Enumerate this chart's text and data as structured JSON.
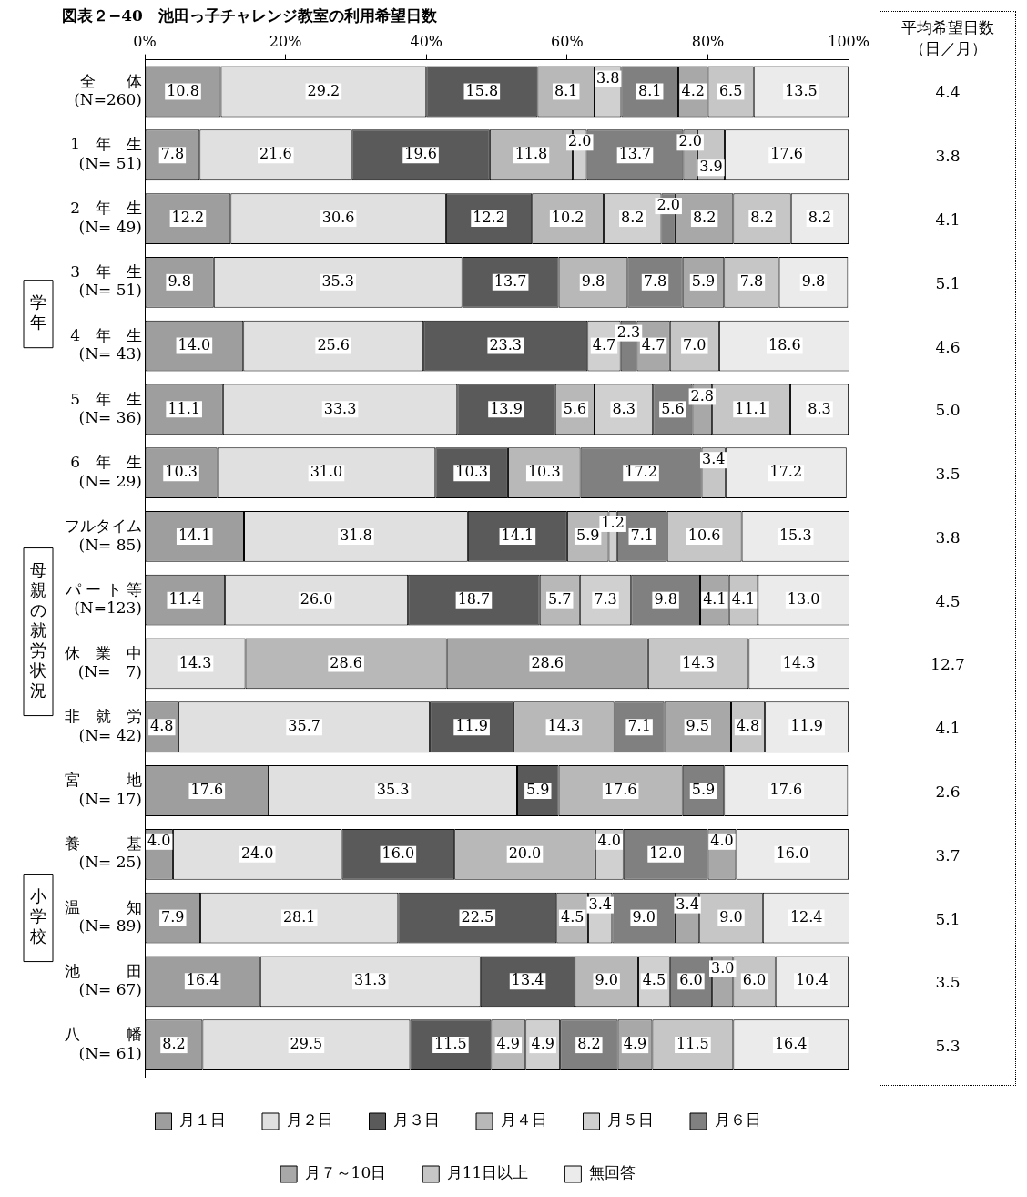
{
  "chart_data": [
    {
      "type": "bar",
      "orientation": "horizontal",
      "stacked": true,
      "title": "図表２−40　池田っ子チャレンジ教室の利用希望日数",
      "categories": [
        "全　　体\n(N=260)",
        "1　年　生\n(N= 51)",
        "2　年　生\n(N= 49)",
        "3　年　生\n(N= 51)",
        "4　年　生\n(N= 43)",
        "5　年　生\n(N= 36)",
        "6　年　生\n(N= 29)",
        "フルタイム\n(N= 85)",
        "パ ー ト 等\n(N=123)",
        "休　業　中\n(N=　7)",
        "非　就　労\n(N= 42)",
        "宮　　　地\n(N= 17)",
        "養　　　基\n(N= 25)",
        "温　　　知\n(N= 89)",
        "池　　　田\n(N= 67)",
        "八　　　幡\n(N= 61)"
      ],
      "series": [
        {
          "name": "月１日",
          "color": "#9e9e9e",
          "values": [
            10.8,
            7.8,
            12.2,
            9.8,
            14.0,
            11.1,
            10.3,
            14.1,
            11.4,
            null,
            4.8,
            17.6,
            4.0,
            7.9,
            16.4,
            8.2
          ],
          "value_labels": [
            "10.8",
            "7.8",
            "12.2",
            "9.8",
            "14.0",
            "11.1",
            "10.3",
            "14.1",
            "11.4",
            null,
            "4.8",
            "17.6",
            "4.0",
            "7.9",
            "16.4",
            "8.2"
          ]
        },
        {
          "name": "月２日",
          "color": "#e0e0e0",
          "values": [
            29.2,
            21.6,
            30.6,
            35.3,
            25.6,
            33.3,
            31.0,
            31.8,
            26.0,
            14.3,
            35.7,
            35.3,
            24.0,
            28.1,
            31.3,
            29.5
          ],
          "value_labels": [
            "29.2",
            "21.6",
            "30.6",
            "35.3",
            "25.6",
            "33.3",
            "31.0",
            "31.8",
            "26.0",
            "14.3",
            "35.7",
            "35.3",
            "24.0",
            "28.1",
            "31.3",
            "29.5"
          ]
        },
        {
          "name": "月３日",
          "color": "#5a5a5a",
          "values": [
            15.8,
            19.6,
            12.2,
            13.7,
            23.3,
            13.9,
            10.3,
            14.1,
            18.7,
            null,
            11.9,
            5.9,
            16.0,
            22.5,
            13.4,
            11.5
          ],
          "value_labels": [
            "15.8",
            "19.6",
            "12.2",
            "13.7",
            "23.3",
            "13.9",
            "10.3",
            "14.1",
            "18.7",
            null,
            "11.9",
            "5.9",
            "16.0",
            "22.5",
            "13.4",
            "11.5"
          ]
        },
        {
          "name": "月４日",
          "color": "#b8b8b8",
          "values": [
            8.1,
            11.8,
            10.2,
            9.8,
            null,
            5.6,
            10.3,
            5.9,
            5.7,
            28.6,
            14.3,
            17.6,
            20.0,
            4.5,
            9.0,
            4.9
          ],
          "value_labels": [
            "8.1",
            "11.8",
            "10.2",
            "9.8",
            null,
            "5.6",
            "10.3",
            "5.9",
            "5.7",
            "28.6",
            "14.3",
            "17.6",
            "20.0",
            "4.5",
            "9.0",
            "4.9"
          ]
        },
        {
          "name": "月５日",
          "color": "#d0d0d0",
          "values": [
            3.8,
            2.0,
            8.2,
            null,
            4.7,
            8.3,
            null,
            1.2,
            7.3,
            null,
            null,
            null,
            4.0,
            3.4,
            4.5,
            4.9
          ],
          "value_labels": [
            "3.8",
            "2.0",
            "8.2",
            null,
            "4.7",
            "8.3",
            null,
            "1.2",
            "7.3",
            null,
            null,
            null,
            "4.0",
            "3.4",
            "4.5",
            "4.9"
          ]
        },
        {
          "name": "月６日",
          "color": "#808080",
          "values": [
            8.1,
            13.7,
            2.0,
            7.8,
            2.3,
            5.6,
            17.2,
            7.1,
            9.8,
            null,
            7.1,
            5.9,
            12.0,
            9.0,
            6.0,
            8.2
          ],
          "value_labels": [
            "8.1",
            "13.7",
            "2.0",
            "7.8",
            "2.3",
            "5.6",
            "17.2",
            "7.1",
            "9.8",
            null,
            "7.1",
            "5.9",
            "12.0",
            "9.0",
            "6.0",
            "8.2"
          ]
        },
        {
          "name": "月７～10日",
          "color": "#a8a8a8",
          "values": [
            4.2,
            2.0,
            8.2,
            5.9,
            4.7,
            2.8,
            null,
            null,
            4.1,
            28.6,
            9.5,
            null,
            4.0,
            3.4,
            3.0,
            4.9
          ],
          "value_labels": [
            "4.2",
            "2.0",
            "8.2",
            "5.9",
            "4.7",
            "2.8",
            null,
            null,
            "4.1",
            "28.6",
            "9.5",
            null,
            "4.0",
            "3.4",
            "3.0",
            "4.9"
          ]
        },
        {
          "name": "月11日以上",
          "color": "#c6c6c6",
          "values": [
            6.5,
            3.9,
            8.2,
            7.8,
            7.0,
            11.1,
            3.4,
            10.6,
            4.1,
            14.3,
            4.8,
            null,
            null,
            9.0,
            6.0,
            11.5
          ],
          "value_labels": [
            "6.5",
            "3.9",
            "8.2",
            "7.8",
            "7.0",
            "11.1",
            "3.4",
            "10.6",
            "4.1",
            "14.3",
            "4.8",
            null,
            null,
            "9.0",
            "6.0",
            "11.5"
          ]
        },
        {
          "name": "無回答",
          "color": "#ebebeb",
          "values": [
            13.5,
            17.6,
            8.2,
            9.8,
            18.6,
            8.3,
            17.2,
            15.3,
            13.0,
            14.3,
            11.9,
            17.6,
            16.0,
            12.4,
            10.4,
            16.4
          ],
          "value_labels": [
            "13.5",
            "17.6",
            "8.2",
            "9.8",
            "18.6",
            "8.3",
            "17.2",
            "15.3",
            "13.0",
            "14.3",
            "11.9",
            "17.6",
            "16.0",
            "12.4",
            "10.4",
            "16.4"
          ]
        }
      ],
      "xlim": [
        0,
        100
      ],
      "xticks": [
        {
          "value": 0,
          "label": "0%"
        },
        {
          "value": 20,
          "label": "20%"
        },
        {
          "value": 40,
          "label": "40%"
        },
        {
          "value": 60,
          "label": "60%"
        },
        {
          "value": 80,
          "label": "80%"
        },
        {
          "value": 100,
          "label": "100%"
        }
      ],
      "grid": false,
      "legend": "bottom",
      "annotations": [
        "学年",
        "母親の就労状況",
        "小学校"
      ]
    },
    {
      "type": "other",
      "title": "平均希望日数（日／月）",
      "value_labels": [
        "4.4",
        "3.8",
        "4.1",
        "5.1",
        "4.6",
        "5.0",
        "3.5",
        "3.8",
        "4.5",
        "12.7",
        "4.1",
        "2.6",
        "3.7",
        "5.1",
        "3.5",
        "5.3"
      ]
    }
  ]
}
